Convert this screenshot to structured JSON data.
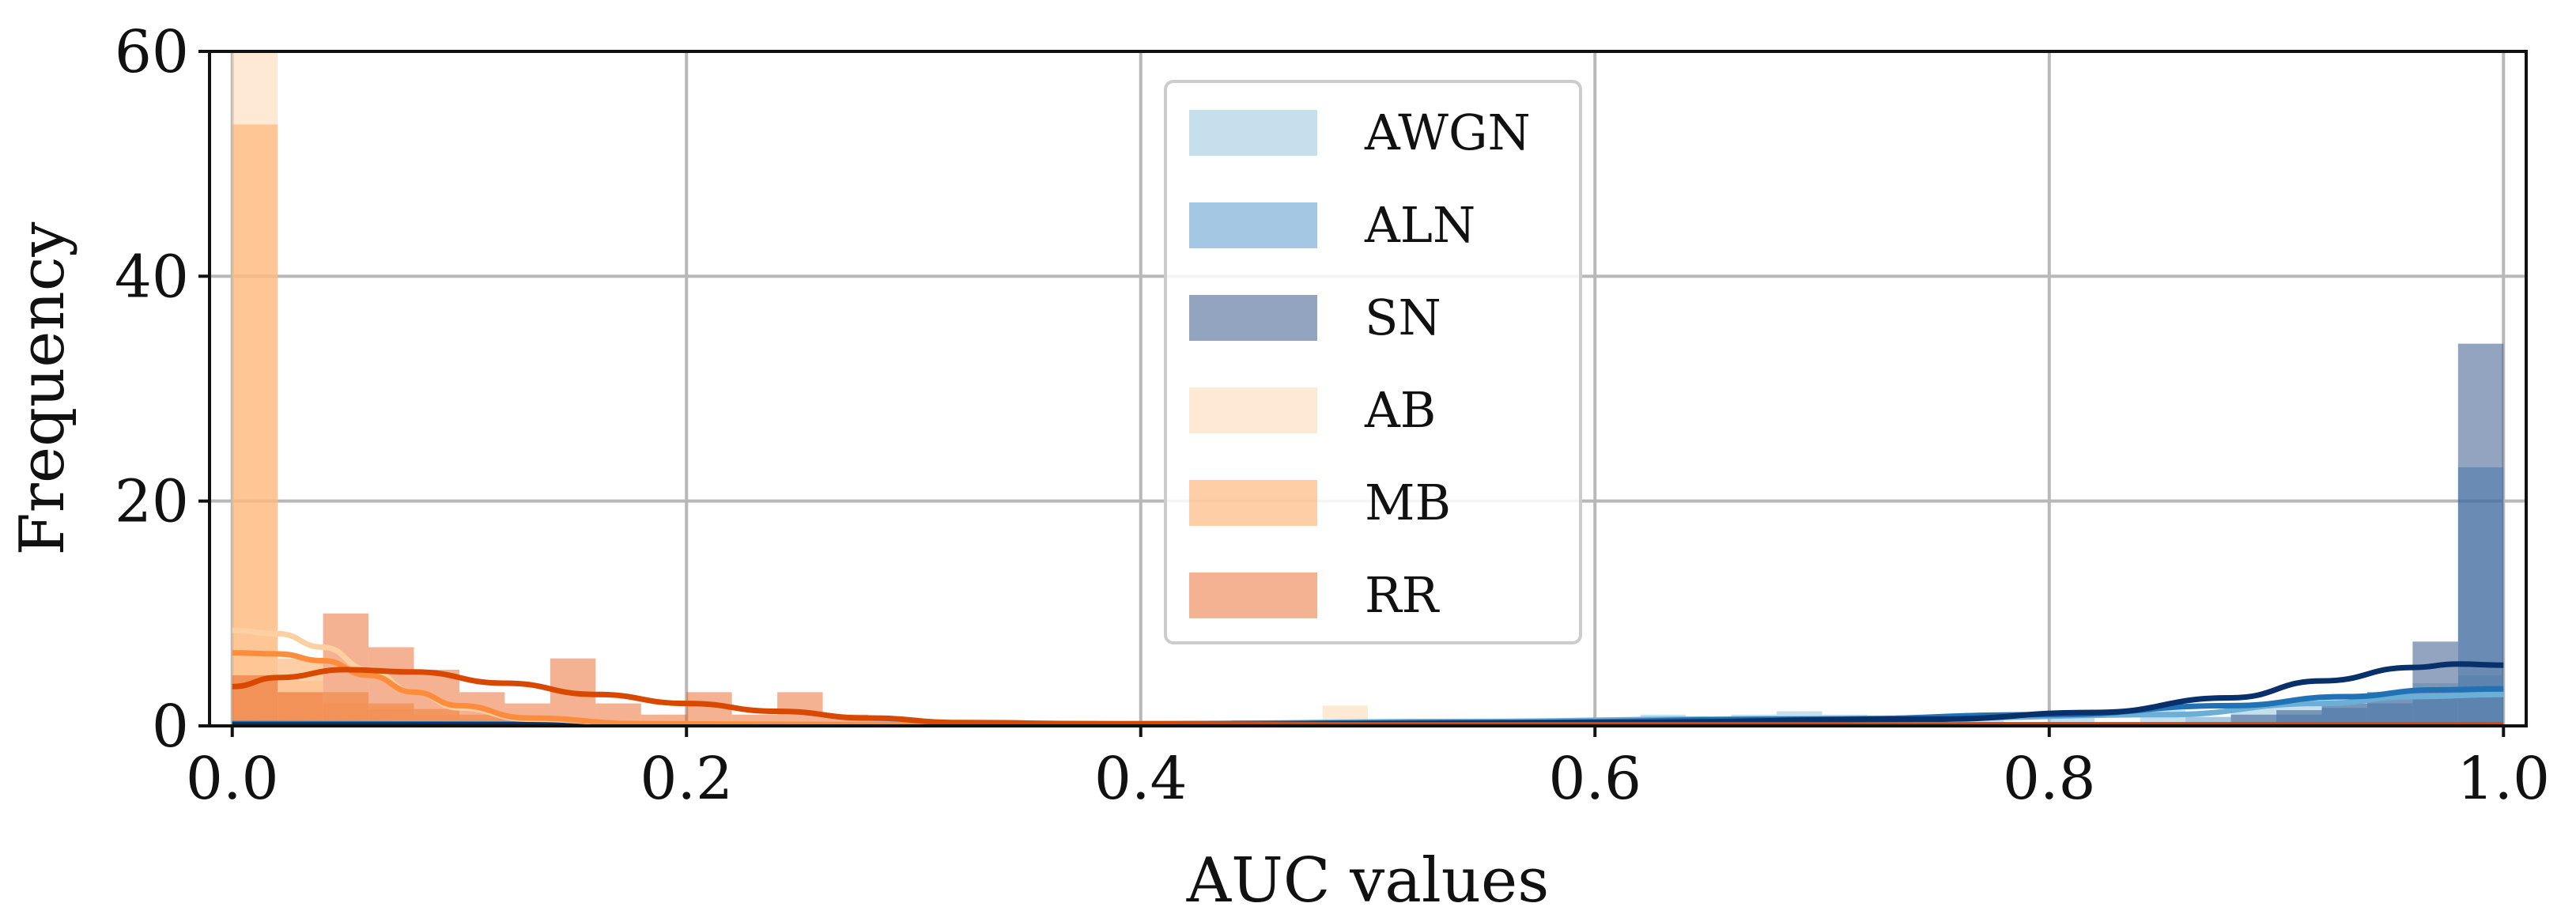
{
  "chart_data": {
    "type": "histogram",
    "xlabel": "AUC values",
    "ylabel": "Frequency",
    "xlim": [
      -0.01,
      1.01
    ],
    "ylim": [
      0,
      60
    ],
    "grid": true,
    "legend_position": "upper center",
    "x_ticks": [
      "0.0",
      "0.2",
      "0.4",
      "0.6",
      "0.8",
      "1.0"
    ],
    "y_ticks": [
      "0",
      "20",
      "40",
      "60"
    ],
    "bin_width": 0.02,
    "series": [
      {
        "name": "AWGN",
        "color": "#9ecae1",
        "opacity": 0.6,
        "bins": [
          [
            0.0,
            0.2
          ],
          [
            0.02,
            0.1
          ],
          [
            0.62,
            1.0
          ],
          [
            0.64,
            0.8
          ],
          [
            0.66,
            1.0
          ],
          [
            0.68,
            1.3
          ],
          [
            0.7,
            1.0
          ],
          [
            0.72,
            0.6
          ],
          [
            0.76,
            0.8
          ],
          [
            0.8,
            1.0
          ],
          [
            0.84,
            1.4
          ],
          [
            0.88,
            1.6
          ],
          [
            0.9,
            2.0
          ],
          [
            0.92,
            2.4
          ],
          [
            0.94,
            3.0
          ],
          [
            0.96,
            3.8
          ],
          [
            0.98,
            4.5
          ]
        ],
        "kde": [
          [
            0.0,
            0.2
          ],
          [
            0.2,
            0.1
          ],
          [
            0.4,
            0.2
          ],
          [
            0.55,
            0.4
          ],
          [
            0.65,
            0.6
          ],
          [
            0.75,
            0.7
          ],
          [
            0.85,
            1.0
          ],
          [
            0.92,
            2.0
          ],
          [
            0.96,
            2.6
          ],
          [
            1.0,
            2.8
          ]
        ]
      },
      {
        "name": "ALN",
        "color": "#4a90c8",
        "opacity": 0.5,
        "bins": [
          [
            0.0,
            0.2
          ],
          [
            0.86,
            0.8
          ],
          [
            0.9,
            1.0
          ],
          [
            0.92,
            1.6
          ],
          [
            0.94,
            2.0
          ],
          [
            0.96,
            2.8
          ],
          [
            0.98,
            23.0
          ]
        ],
        "kde": [
          [
            0.0,
            0.2
          ],
          [
            0.3,
            0.1
          ],
          [
            0.55,
            0.3
          ],
          [
            0.7,
            0.6
          ],
          [
            0.8,
            1.0
          ],
          [
            0.88,
            1.8
          ],
          [
            0.93,
            2.6
          ],
          [
            0.97,
            3.2
          ],
          [
            1.0,
            3.3
          ]
        ]
      },
      {
        "name": "SN",
        "color": "#3a5a8c",
        "opacity": 0.55,
        "bins": [
          [
            0.0,
            0.3
          ],
          [
            0.88,
            1.0
          ],
          [
            0.9,
            1.4
          ],
          [
            0.92,
            2.0
          ],
          [
            0.94,
            3.0
          ],
          [
            0.96,
            7.5
          ],
          [
            0.98,
            34.0
          ]
        ],
        "kde": [
          [
            0.0,
            0.1
          ],
          [
            0.4,
            0.1
          ],
          [
            0.6,
            0.3
          ],
          [
            0.75,
            0.6
          ],
          [
            0.82,
            1.2
          ],
          [
            0.88,
            2.5
          ],
          [
            0.92,
            4.0
          ],
          [
            0.96,
            5.2
          ],
          [
            0.98,
            5.5
          ],
          [
            1.0,
            5.4
          ]
        ]
      },
      {
        "name": "AB",
        "color": "#fddbb7",
        "opacity": 0.6,
        "bins": [
          [
            0.0,
            62.0
          ],
          [
            0.02,
            4.0
          ],
          [
            0.04,
            2.0
          ],
          [
            0.06,
            1.5
          ],
          [
            0.08,
            1.0
          ],
          [
            0.1,
            0.6
          ],
          [
            0.12,
            0.4
          ],
          [
            0.48,
            1.8
          ]
        ],
        "kde": [
          [
            0.0,
            8.5
          ],
          [
            0.02,
            8.2
          ],
          [
            0.04,
            7.0
          ],
          [
            0.06,
            5.0
          ],
          [
            0.08,
            3.0
          ],
          [
            0.1,
            1.6
          ],
          [
            0.13,
            0.6
          ],
          [
            0.18,
            0.2
          ],
          [
            0.3,
            0.1
          ],
          [
            0.6,
            0.0
          ]
        ]
      },
      {
        "name": "MB",
        "color": "#fdae6b",
        "opacity": 0.6,
        "bins": [
          [
            0.0,
            53.5
          ],
          [
            0.02,
            6.0
          ],
          [
            0.04,
            3.0
          ],
          [
            0.06,
            2.0
          ],
          [
            0.08,
            1.5
          ],
          [
            0.1,
            1.0
          ],
          [
            0.12,
            0.6
          ]
        ],
        "kde": [
          [
            0.0,
            6.5
          ],
          [
            0.02,
            6.4
          ],
          [
            0.04,
            5.8
          ],
          [
            0.06,
            4.5
          ],
          [
            0.08,
            3.0
          ],
          [
            0.1,
            1.8
          ],
          [
            0.13,
            0.7
          ],
          [
            0.18,
            0.2
          ],
          [
            0.3,
            0.1
          ],
          [
            0.6,
            0.0
          ]
        ]
      },
      {
        "name": "RR",
        "color": "#e6550d",
        "opacity": 0.45,
        "bins": [
          [
            0.0,
            4.5
          ],
          [
            0.02,
            3.0
          ],
          [
            0.04,
            10.0
          ],
          [
            0.06,
            7.0
          ],
          [
            0.08,
            5.0
          ],
          [
            0.1,
            3.0
          ],
          [
            0.12,
            2.0
          ],
          [
            0.14,
            6.0
          ],
          [
            0.16,
            2.0
          ],
          [
            0.18,
            1.0
          ],
          [
            0.2,
            3.0
          ],
          [
            0.22,
            1.0
          ],
          [
            0.24,
            3.0
          ],
          [
            0.26,
            1.0
          ],
          [
            0.28,
            0.5
          ],
          [
            0.32,
            0.5
          ],
          [
            0.44,
            0.5
          ],
          [
            0.5,
            0.5
          ]
        ],
        "kde": [
          [
            0.0,
            3.5
          ],
          [
            0.02,
            4.3
          ],
          [
            0.05,
            5.0
          ],
          [
            0.08,
            4.8
          ],
          [
            0.12,
            3.8
          ],
          [
            0.16,
            2.8
          ],
          [
            0.2,
            2.0
          ],
          [
            0.24,
            1.3
          ],
          [
            0.28,
            0.7
          ],
          [
            0.32,
            0.3
          ],
          [
            0.38,
            0.2
          ],
          [
            0.5,
            0.1
          ],
          [
            0.7,
            0.1
          ],
          [
            0.9,
            0.1
          ],
          [
            1.0,
            0.1
          ]
        ]
      }
    ]
  }
}
